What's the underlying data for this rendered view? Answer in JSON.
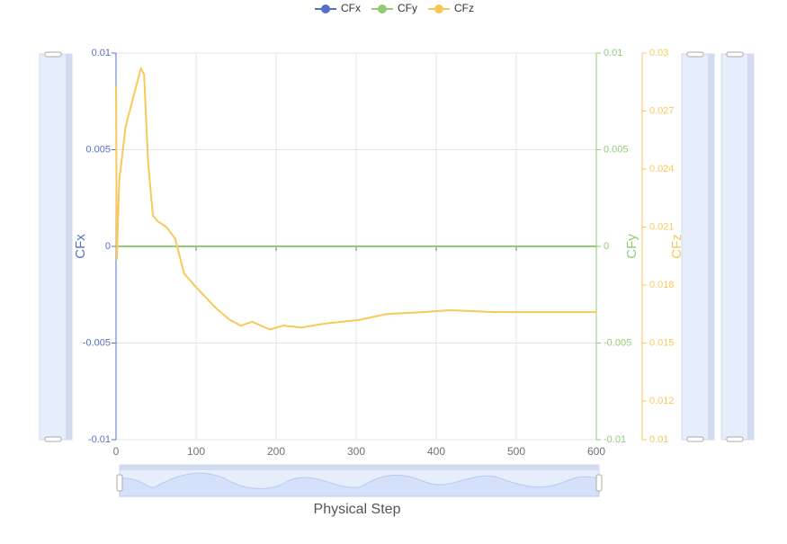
{
  "chart_data": {
    "type": "line",
    "xlabel": "Physical Step",
    "x": [
      0,
      1,
      4,
      12,
      24,
      31,
      35,
      40,
      46,
      52,
      63,
      74,
      85,
      102,
      125,
      142,
      156,
      170,
      192,
      209,
      231,
      260,
      304,
      338,
      383,
      417,
      473,
      529,
      600
    ],
    "series": [
      {
        "name": "CFx",
        "color": "#5470c6",
        "axis": "y",
        "values": [
          0,
          0,
          0,
          0,
          0,
          0,
          0,
          0,
          0,
          0,
          0,
          0,
          0,
          0,
          0,
          0,
          0,
          0,
          0,
          0,
          0,
          0,
          0,
          0,
          0,
          0,
          0,
          0,
          0
        ]
      },
      {
        "name": "CFy",
        "color": "#91cc75",
        "axis": "y2",
        "values": [
          0,
          0,
          0,
          0,
          0,
          0,
          0,
          0,
          0,
          0,
          0,
          0,
          0,
          0,
          0,
          0,
          0,
          0,
          0,
          0,
          0,
          0,
          0,
          0,
          0,
          0,
          0,
          0,
          0
        ]
      },
      {
        "name": "CFz",
        "color": "#fac858",
        "axis": "y3",
        "values": [
          0.0283,
          0.0193,
          0.0234,
          0.0262,
          0.0281,
          0.0292,
          0.0289,
          0.0244,
          0.0216,
          0.0213,
          0.021,
          0.0204,
          0.0186,
          0.0178,
          0.0168,
          0.0162,
          0.0159,
          0.0161,
          0.0157,
          0.0159,
          0.0158,
          0.016,
          0.0162,
          0.0165,
          0.0166,
          0.0167,
          0.0166,
          0.0166,
          0.0166
        ]
      }
    ],
    "ylabel": "CFx",
    "y2label": "CFy",
    "y3label": "CFz",
    "xlim": [
      0,
      600
    ],
    "xticks": [
      0,
      100,
      200,
      300,
      400,
      500,
      600
    ],
    "ylim": [
      -0.01,
      0.01
    ],
    "yticks": [
      -0.01,
      -0.005,
      0,
      0.005,
      0.01
    ],
    "y2lim": [
      -0.01,
      0.01
    ],
    "y2ticks": [
      -0.01,
      -0.005,
      0,
      0.005,
      0.01
    ],
    "y3lim": [
      0.01,
      0.03
    ],
    "y3ticks": [
      0.01,
      0.012,
      0.015,
      0.018,
      0.021,
      0.024,
      0.027,
      0.03
    ],
    "grid": true,
    "legend": "top"
  }
}
